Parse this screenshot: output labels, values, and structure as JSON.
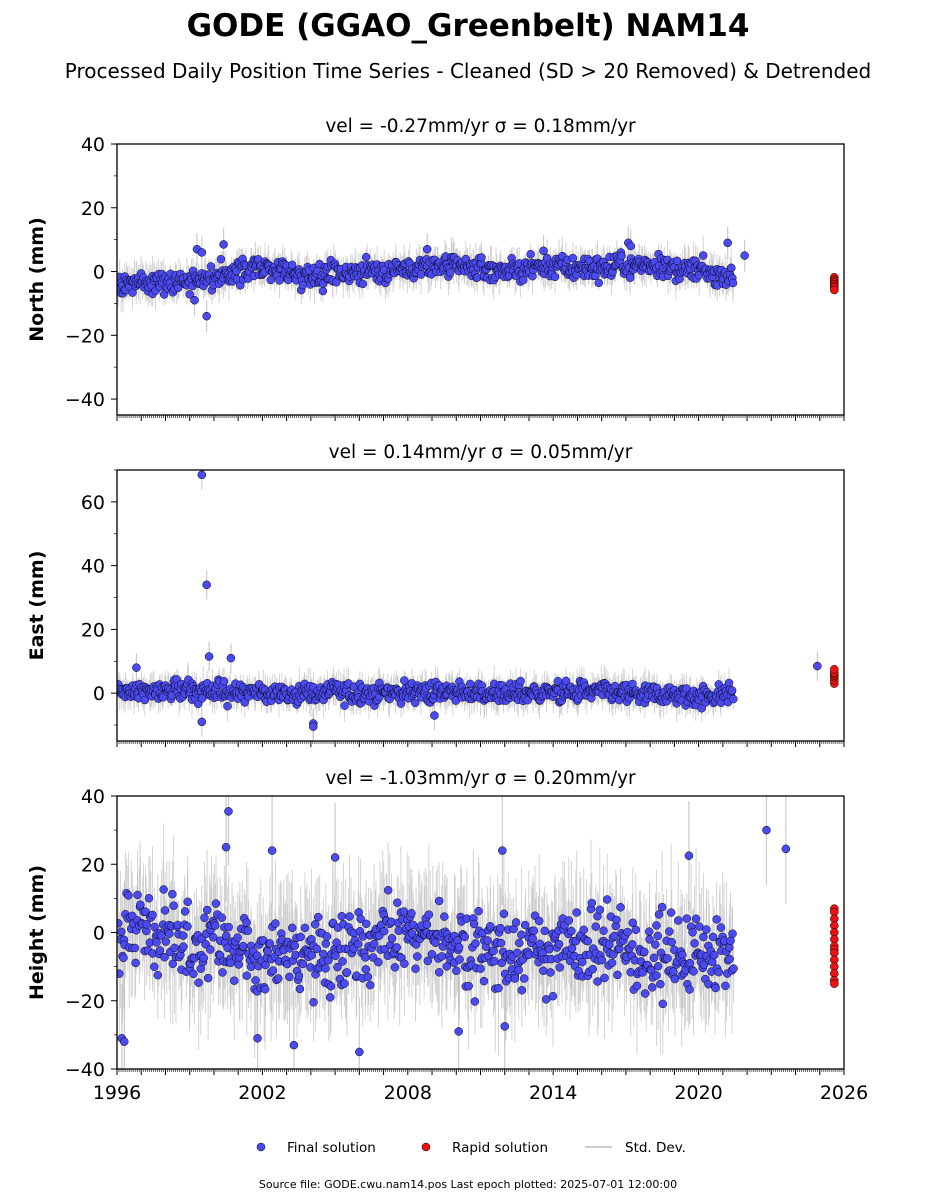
{
  "title": "GODE (GGAO_Greenbelt) NAM14",
  "subtitle": "Processed Daily Position Time Series - Cleaned (SD > 20 Removed) & Detrended",
  "source_note": "Source file: GODE.cwu.nam14.pos  Last epoch plotted: 2025-07-01 12:00:00",
  "colors": {
    "final": "#4a4af0",
    "rapid": "#ee1111",
    "std": "#bdbdbd"
  },
  "legend": {
    "final": "Final solution",
    "rapid": "Rapid solution",
    "std": "Std. Dev."
  },
  "chart_data": [
    {
      "type": "scatter",
      "title": "vel = -0.27mm/yr   σ = 0.18mm/yr",
      "ylabel": "North (mm)",
      "xlim": [
        1996,
        2026
      ],
      "ylim": [
        -45,
        40
      ],
      "yticks": [
        -40,
        -20,
        0,
        20,
        40
      ],
      "xticks": [
        1996,
        2002,
        2008,
        2014,
        2020,
        2026
      ],
      "trend": [
        [
          1996,
          -4
        ],
        [
          1998,
          -3
        ],
        [
          2000,
          -2
        ],
        [
          2002,
          1.5
        ],
        [
          2004,
          -1.5
        ],
        [
          2006,
          0
        ],
        [
          2008,
          1
        ],
        [
          2010,
          1.5
        ],
        [
          2012,
          0
        ],
        [
          2014,
          1.5
        ],
        [
          2016,
          1
        ],
        [
          2018,
          2
        ],
        [
          2020,
          0
        ],
        [
          2022,
          -1.5
        ],
        [
          2024,
          -1.5
        ],
        [
          2025.5,
          -3.5
        ]
      ],
      "spread": 2.5,
      "outliers": [
        [
          1999.3,
          7
        ],
        [
          1999.5,
          6
        ],
        [
          2000.4,
          8.5
        ],
        [
          1999.7,
          -14
        ],
        [
          1999.2,
          -9
        ],
        [
          2008.8,
          7
        ],
        [
          2013.6,
          6.5
        ],
        [
          2017.1,
          9
        ],
        [
          2017.2,
          8
        ],
        [
          2021.2,
          9
        ],
        [
          2021.9,
          5
        ]
      ],
      "rapid": {
        "x": 2025.6,
        "values": [
          -1.8,
          -2.5,
          -3.0,
          -3.5,
          -4.0,
          -4.5,
          -5.0,
          -5.8
        ]
      }
    },
    {
      "type": "scatter",
      "title": "vel = 0.14mm/yr   σ = 0.05mm/yr",
      "ylabel": "East (mm)",
      "xlim": [
        1996,
        2026
      ],
      "ylim": [
        -15,
        70
      ],
      "yticks": [
        0,
        20,
        40,
        60
      ],
      "xticks": [
        1996,
        2002,
        2008,
        2014,
        2020,
        2026
      ],
      "trend": [
        [
          1996,
          0
        ],
        [
          1999,
          1
        ],
        [
          2001,
          0
        ],
        [
          2004,
          0
        ],
        [
          2008,
          0.5
        ],
        [
          2012,
          0
        ],
        [
          2016,
          0.5
        ],
        [
          2020,
          -1
        ],
        [
          2023,
          0
        ],
        [
          2024.5,
          2
        ],
        [
          2025.5,
          5
        ]
      ],
      "spread": 2.3,
      "outliers": [
        [
          1999.5,
          68.5
        ],
        [
          1999.7,
          34
        ],
        [
          1999.8,
          11.5
        ],
        [
          2000.7,
          11
        ],
        [
          1996.8,
          8
        ],
        [
          2004.1,
          -9.5
        ],
        [
          2004.1,
          -10.5
        ],
        [
          1999.5,
          -9
        ],
        [
          2009.1,
          -7
        ],
        [
          2024.9,
          8.5
        ]
      ],
      "rapid": {
        "x": 2025.6,
        "values": [
          3.0,
          4.0,
          5.0,
          5.5,
          6.0,
          6.5,
          7.5
        ]
      }
    },
    {
      "type": "scatter",
      "title": "vel = -1.03mm/yr   σ = 0.20mm/yr",
      "ylabel": "Height (mm)",
      "xlim": [
        1996,
        2026
      ],
      "ylim": [
        -40,
        40
      ],
      "yticks": [
        -40,
        -20,
        0,
        20,
        40
      ],
      "xticks": [
        1996,
        2002,
        2008,
        2014,
        2020,
        2026
      ],
      "trend": [
        [
          1996,
          0
        ],
        [
          1997,
          3
        ],
        [
          1999,
          -4
        ],
        [
          2002,
          -6
        ],
        [
          2004,
          -6
        ],
        [
          2006,
          -3
        ],
        [
          2008,
          -2
        ],
        [
          2010,
          -3
        ],
        [
          2012,
          -5
        ],
        [
          2014,
          -5
        ],
        [
          2016,
          -4
        ],
        [
          2018,
          -7
        ],
        [
          2020,
          -6
        ],
        [
          2022,
          -3
        ],
        [
          2024,
          -2
        ],
        [
          2025.5,
          -2
        ]
      ],
      "spread": 8,
      "outliers": [
        [
          2000.6,
          35.5
        ],
        [
          2002.4,
          24
        ],
        [
          2000.5,
          25
        ],
        [
          2022.8,
          30
        ],
        [
          2023.6,
          24.5
        ],
        [
          2019.6,
          22.5
        ],
        [
          1996.2,
          -31
        ],
        [
          1996.3,
          -32
        ],
        [
          2001.8,
          -31
        ],
        [
          2003.3,
          -33
        ],
        [
          2006.0,
          -35
        ],
        [
          2012.0,
          -27.5
        ],
        [
          2010.1,
          -29
        ],
        [
          2005.0,
          22
        ],
        [
          2011.9,
          24
        ]
      ],
      "rapid": {
        "x": 2025.6,
        "values": [
          7.0,
          6.0,
          4.0,
          2.0,
          0.0,
          -2.0,
          -4.0,
          -5.0,
          -6.0,
          -8.0,
          -10.0,
          -12.0,
          -14.0,
          -15.0
        ]
      }
    }
  ]
}
